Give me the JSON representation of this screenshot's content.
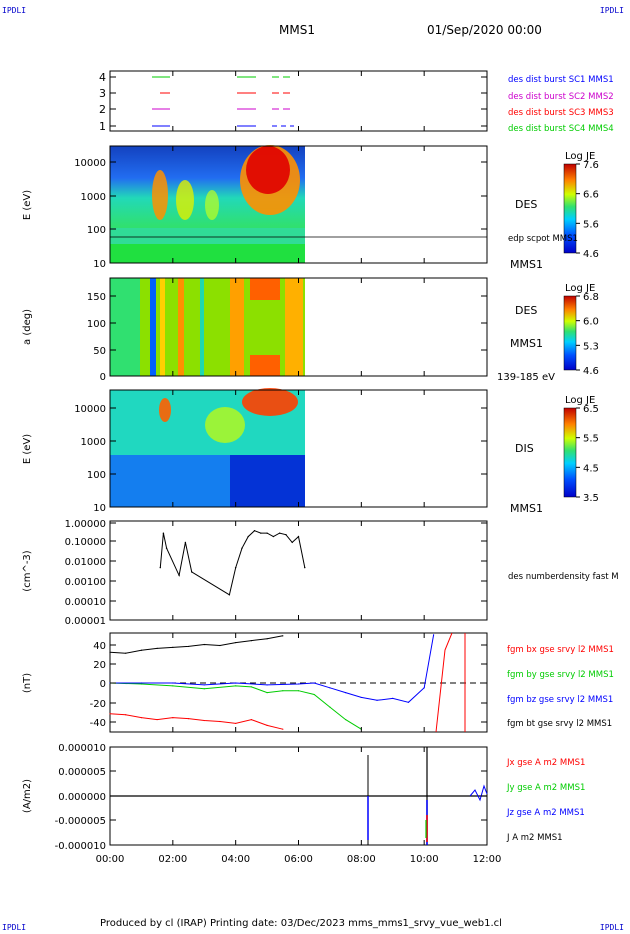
{
  "header": {
    "title": "MMS1",
    "date": "01/Sep/2020 00:00",
    "corner_label": "IPDLI"
  },
  "footer": {
    "text": "Produced by cl (IRAP)    Printing date: 03/Dec/2023    mms_mms1_srvy_vue_web1.cl"
  },
  "colors": {
    "mms1": "#0000ff",
    "mms2": "#cc00cc",
    "mms3": "#ff0000",
    "mms4": "#00cc00",
    "bx": "#ff0000",
    "by": "#00cc00",
    "bz": "#0000ff",
    "bt": "#000000"
  },
  "panels": [
    {
      "id": "coverage",
      "y_ticks": [
        "1",
        "2",
        "3",
        "4"
      ],
      "legend": [
        "des dist burst SC1 MMS1",
        "des dist burst SC2 MMS2",
        "des dist burst SC3 MMS3",
        "des dist burst SC4 MMS4"
      ]
    },
    {
      "id": "des-energy",
      "ylabel": "E (eV)",
      "y_ticks": [
        "10",
        "100",
        "1000",
        "10000"
      ],
      "right_labels": [
        "DES",
        "edp scpot MMS1",
        "MMS1"
      ],
      "colorbar": {
        "title": "Log JE",
        "ticks": [
          "7.6",
          "6.6",
          "5.6",
          "4.6"
        ]
      }
    },
    {
      "id": "des-pitch",
      "ylabel": "a (deg)",
      "y_ticks": [
        "0",
        "50",
        "100",
        "150"
      ],
      "right_labels": [
        "DES",
        "MMS1",
        "139-185 eV"
      ],
      "colorbar": {
        "title": "Log JE",
        "ticks": [
          "6.8",
          "6.0",
          "5.3",
          "4.6"
        ]
      }
    },
    {
      "id": "dis-energy",
      "ylabel": "E (eV)",
      "y_ticks": [
        "10",
        "100",
        "1000",
        "10000"
      ],
      "right_labels": [
        "DIS",
        "MMS1"
      ],
      "colorbar": {
        "title": "Log JE",
        "ticks": [
          "6.5",
          "5.5",
          "4.5",
          "3.5"
        ]
      }
    },
    {
      "id": "density",
      "ylabel": "(cm^-3)",
      "y_ticks": [
        "0.00001",
        "0.00010",
        "0.00100",
        "0.01000",
        "0.10000",
        "1.00000"
      ],
      "right_labels": [
        "des numberdensity fast M"
      ]
    },
    {
      "id": "fgm",
      "ylabel": "(nT)",
      "y_ticks": [
        "-40",
        "-20",
        "0",
        "20",
        "40"
      ],
      "right_labels": [
        "fgm bx gse srvy l2 MMS1",
        "fgm by gse srvy l2 MMS1",
        "fgm bz gse srvy l2 MMS1",
        "fgm bt gse srvy l2 MMS1"
      ]
    },
    {
      "id": "current",
      "ylabel": "(A/m2)",
      "y_ticks": [
        "-0.000010",
        "-0.000005",
        "0.000000",
        "0.000005",
        "0.000010"
      ],
      "right_labels": [
        "Jx gse A m2 MMS1",
        "Jy gse A m2 MMS1",
        "Jz gse A m2 MMS1",
        "J A m2 MMS1"
      ]
    }
  ],
  "x_ticks": [
    "00:00",
    "02:00",
    "04:00",
    "06:00",
    "08:00",
    "10:00",
    "12:00"
  ],
  "chart_data": [
    {
      "type": "line",
      "title": "fgm",
      "x_unit": "hours",
      "ylim": [
        -50,
        50
      ],
      "series": [
        {
          "name": "fgm bt gse srvy l2 MMS1",
          "x": [
            0,
            0.5,
            1,
            1.5,
            2,
            2.5,
            3,
            3.5,
            4,
            4.5,
            5,
            5.5
          ],
          "values": [
            32,
            31,
            34,
            36,
            37,
            38,
            40,
            39,
            42,
            44,
            46,
            49
          ]
        },
        {
          "name": "fgm bx gse srvy l2 MMS1",
          "x": [
            0,
            0.5,
            1,
            1.5,
            2,
            2.5,
            3,
            3.5,
            4,
            4.5,
            5,
            5.5
          ],
          "values": [
            -32,
            -33,
            -36,
            -38,
            -36,
            -37,
            -39,
            -40,
            -42,
            -38,
            -44,
            -48
          ]
        },
        {
          "name": "fgm by gse srvy l2 MMS1",
          "x": [
            0,
            1,
            2,
            3,
            4,
            4.5,
            5,
            5.5,
            6,
            6.5,
            7,
            7.5,
            8
          ],
          "values": [
            0,
            -1,
            -3,
            -6,
            -3,
            -4,
            -10,
            -8,
            -8,
            -12,
            -25,
            -38,
            -48
          ]
        },
        {
          "name": "fgm bz gse srvy l2 MMS1",
          "x": [
            0,
            1,
            2,
            3,
            4,
            5,
            6,
            6.5,
            7,
            7.5,
            8,
            8.5,
            9,
            9.5,
            10,
            10.3
          ],
          "values": [
            0,
            0,
            0,
            -2,
            0,
            -2,
            -1,
            0,
            -5,
            -10,
            -15,
            -18,
            -16,
            -20,
            -5,
            50
          ]
        }
      ]
    },
    {
      "type": "line",
      "title": "density",
      "x_unit": "hours",
      "yscale": "log",
      "ylim": [
        1e-05,
        1
      ],
      "series": [
        {
          "name": "des numberdensity fast M",
          "x": [
            1.6,
            1.7,
            1.8,
            2.2,
            2.4,
            2.6,
            3.8,
            4.0,
            4.2,
            4.4,
            4.6,
            4.8,
            5.0,
            5.2,
            5.4,
            5.6,
            5.8,
            6.0,
            6.2
          ],
          "values": [
            0.005,
            0.3,
            0.05,
            0.002,
            0.1,
            0.003,
            0.0002,
            0.005,
            0.05,
            0.2,
            0.4,
            0.3,
            0.3,
            0.2,
            0.3,
            0.25,
            0.1,
            0.2,
            0.005
          ]
        }
      ]
    }
  ]
}
